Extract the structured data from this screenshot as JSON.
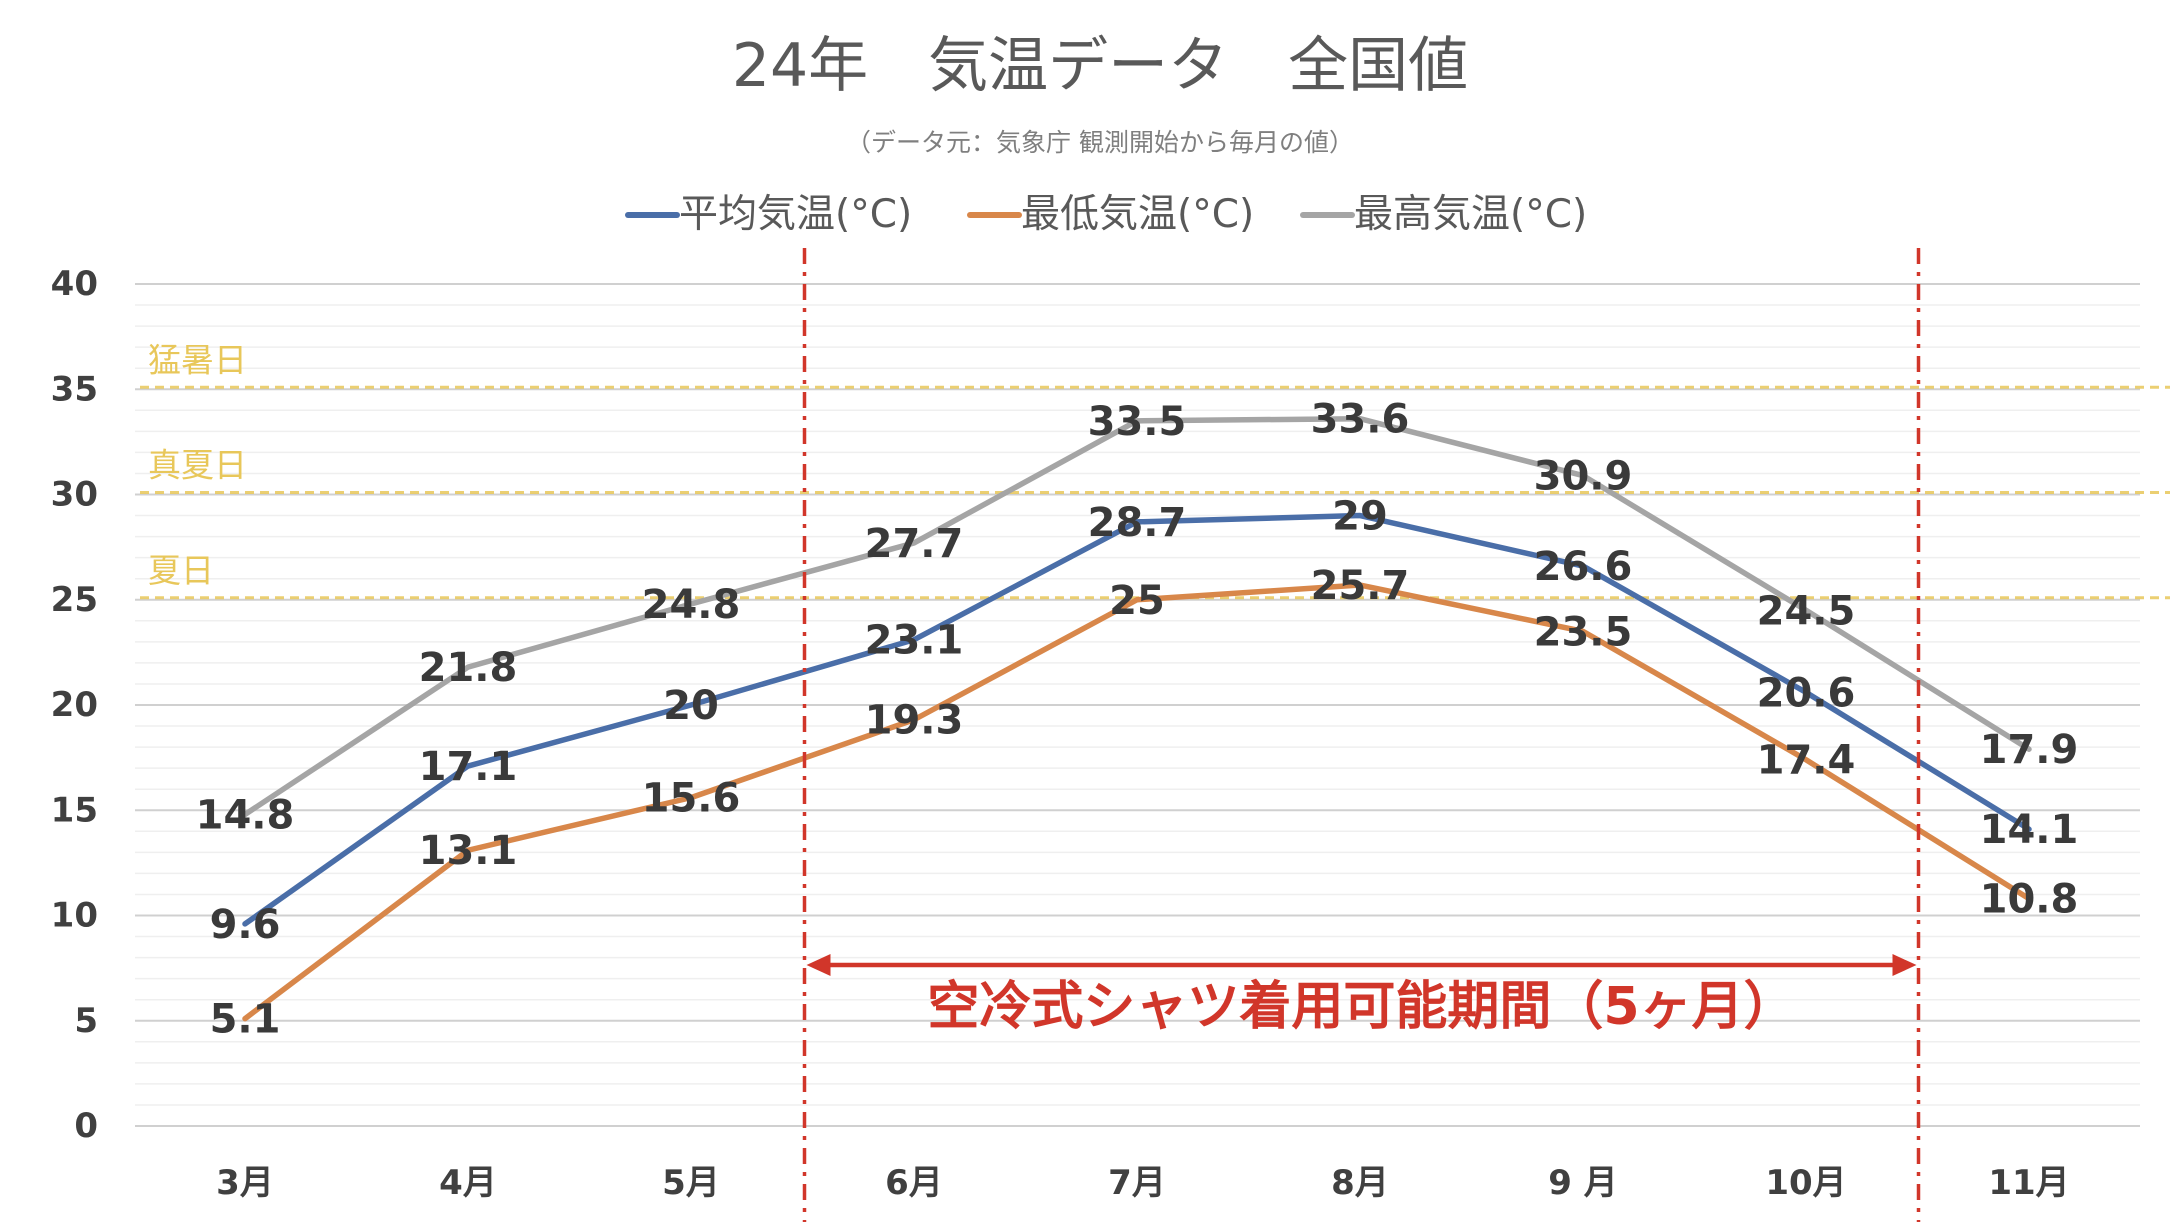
{
  "chart_data": {
    "type": "line",
    "title": "24年　気温データ　全国値",
    "subtitle": "（データ元：気象庁 観測開始から毎月の値）",
    "categories": [
      "3月",
      "4月",
      "5月",
      "6月",
      "7月",
      "8月",
      "9 月",
      "10月",
      "11月"
    ],
    "ylim": [
      0,
      40
    ],
    "yticks": [
      0,
      5,
      10,
      15,
      20,
      25,
      30,
      35,
      40
    ],
    "grid": true,
    "legend_position": "top",
    "series": [
      {
        "name": "平均気温(°C)",
        "color": "#4a6ea8",
        "values": [
          9.6,
          17.1,
          20,
          23.1,
          28.7,
          29,
          26.6,
          20.6,
          14.1
        ]
      },
      {
        "name": "最低気温(°C)",
        "color": "#d8874a",
        "values": [
          5.1,
          13.1,
          15.6,
          19.3,
          25,
          25.7,
          23.5,
          17.4,
          10.8
        ]
      },
      {
        "name": "最高気温(°C)",
        "color": "#a5a5a5",
        "values": [
          14.8,
          21.8,
          24.8,
          27.7,
          33.5,
          33.6,
          30.9,
          24.5,
          17.9
        ]
      }
    ],
    "reference_lines": [
      {
        "label": "猛暑日",
        "value": 35,
        "color": "#e8c75a"
      },
      {
        "label": "真夏日",
        "value": 30,
        "color": "#e8c75a"
      },
      {
        "label": "夏日",
        "value": 25,
        "color": "#e8c75a"
      }
    ],
    "period": {
      "label": "空冷式シャツ着用可能期間（5ヶ月）",
      "color": "#d1362a"
    }
  }
}
